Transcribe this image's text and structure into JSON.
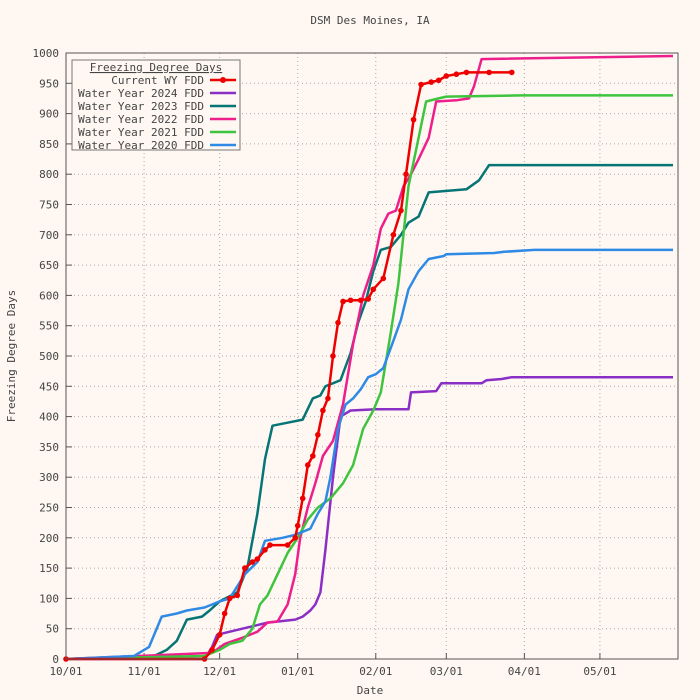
{
  "chart_data": {
    "type": "line",
    "title": "DSM Des Moines, IA",
    "xlabel": "Date",
    "ylabel": "Freezing Degree Days",
    "x_ticks": [
      "10/01",
      "11/01",
      "12/01",
      "01/01",
      "02/01",
      "03/01",
      "04/01",
      "05/01"
    ],
    "y_ticks": [
      0,
      50,
      100,
      150,
      200,
      250,
      300,
      350,
      400,
      450,
      500,
      550,
      600,
      650,
      700,
      750,
      800,
      850,
      900,
      950,
      1000
    ],
    "ylim": [
      0,
      1000
    ],
    "grid": true,
    "legend_title": "Freezing Degree Days",
    "legend_position": "top-left",
    "series": [
      {
        "name": "Current WY FDD",
        "color": "#ee0000",
        "markers": true,
        "points": [
          [
            "10/01",
            0
          ],
          [
            "11/25",
            0
          ],
          [
            "11/28",
            15
          ],
          [
            "12/01",
            40
          ],
          [
            "12/03",
            75
          ],
          [
            "12/05",
            100
          ],
          [
            "12/08",
            105
          ],
          [
            "12/11",
            150
          ],
          [
            "12/14",
            160
          ],
          [
            "12/16",
            165
          ],
          [
            "12/19",
            180
          ],
          [
            "12/21",
            188
          ],
          [
            "12/28",
            188
          ],
          [
            "12/31",
            200
          ],
          [
            "01/01",
            220
          ],
          [
            "01/03",
            265
          ],
          [
            "01/05",
            320
          ],
          [
            "01/07",
            335
          ],
          [
            "01/09",
            370
          ],
          [
            "01/11",
            410
          ],
          [
            "01/13",
            430
          ],
          [
            "01/15",
            500
          ],
          [
            "01/17",
            555
          ],
          [
            "01/19",
            590
          ],
          [
            "01/22",
            592
          ],
          [
            "01/26",
            592
          ],
          [
            "01/29",
            594
          ],
          [
            "01/31",
            610
          ],
          [
            "02/04",
            628
          ],
          [
            "02/08",
            700
          ],
          [
            "02/11",
            740
          ],
          [
            "02/13",
            800
          ],
          [
            "02/16",
            890
          ],
          [
            "02/19",
            948
          ],
          [
            "02/23",
            952
          ],
          [
            "02/26",
            955
          ],
          [
            "03/01",
            962
          ],
          [
            "03/05",
            965
          ],
          [
            "03/09",
            968
          ],
          [
            "03/18",
            968
          ],
          [
            "03/27",
            968
          ]
        ]
      },
      {
        "name": "Water Year 2024 FDD",
        "color": "#8a2fc6",
        "markers": false,
        "points": [
          [
            "10/01",
            0
          ],
          [
            "11/25",
            0
          ],
          [
            "11/28",
            20
          ],
          [
            "11/30",
            40
          ],
          [
            "12/05",
            45
          ],
          [
            "12/10",
            50
          ],
          [
            "12/15",
            55
          ],
          [
            "12/20",
            60
          ],
          [
            "12/31",
            65
          ],
          [
            "01/03",
            70
          ],
          [
            "01/06",
            80
          ],
          [
            "01/08",
            90
          ],
          [
            "01/10",
            110
          ],
          [
            "01/12",
            180
          ],
          [
            "01/15",
            300
          ],
          [
            "01/18",
            400
          ],
          [
            "01/22",
            410
          ],
          [
            "02/01",
            412
          ],
          [
            "02/14",
            412
          ],
          [
            "02/15",
            440
          ],
          [
            "02/25",
            442
          ],
          [
            "02/27",
            455
          ],
          [
            "03/15",
            455
          ],
          [
            "03/17",
            460
          ],
          [
            "03/23",
            462
          ],
          [
            "03/27",
            465
          ],
          [
            "05/30",
            465
          ]
        ]
      },
      {
        "name": "Water Year 2023 FDD",
        "color": "#077575",
        "markers": false,
        "points": [
          [
            "10/01",
            0
          ],
          [
            "11/05",
            5
          ],
          [
            "11/10",
            15
          ],
          [
            "11/14",
            30
          ],
          [
            "11/18",
            65
          ],
          [
            "11/24",
            70
          ],
          [
            "11/27",
            80
          ],
          [
            "12/01",
            95
          ],
          [
            "12/08",
            110
          ],
          [
            "12/12",
            150
          ],
          [
            "12/16",
            240
          ],
          [
            "12/19",
            330
          ],
          [
            "12/22",
            385
          ],
          [
            "12/28",
            390
          ],
          [
            "01/03",
            395
          ],
          [
            "01/07",
            430
          ],
          [
            "01/10",
            435
          ],
          [
            "01/12",
            450
          ],
          [
            "01/18",
            460
          ],
          [
            "01/22",
            505
          ],
          [
            "01/25",
            555
          ],
          [
            "01/28",
            590
          ],
          [
            "01/31",
            640
          ],
          [
            "02/03",
            675
          ],
          [
            "02/07",
            680
          ],
          [
            "02/11",
            700
          ],
          [
            "02/14",
            720
          ],
          [
            "02/18",
            730
          ],
          [
            "02/22",
            770
          ],
          [
            "03/09",
            775
          ],
          [
            "03/14",
            790
          ],
          [
            "03/18",
            815
          ],
          [
            "05/30",
            815
          ]
        ]
      },
      {
        "name": "Water Year 2022 FDD",
        "color": "#ee1e8c",
        "markers": false,
        "points": [
          [
            "10/01",
            0
          ],
          [
            "11/28",
            10
          ],
          [
            "12/03",
            25
          ],
          [
            "12/10",
            35
          ],
          [
            "12/16",
            45
          ],
          [
            "12/20",
            60
          ],
          [
            "12/24",
            62
          ],
          [
            "12/28",
            90
          ],
          [
            "12/31",
            140
          ],
          [
            "01/02",
            200
          ],
          [
            "01/05",
            250
          ],
          [
            "01/08",
            290
          ],
          [
            "01/11",
            335
          ],
          [
            "01/15",
            360
          ],
          [
            "01/19",
            420
          ],
          [
            "01/23",
            520
          ],
          [
            "01/27",
            600
          ],
          [
            "01/31",
            650
          ],
          [
            "02/03",
            710
          ],
          [
            "02/06",
            735
          ],
          [
            "02/09",
            740
          ],
          [
            "02/12",
            780
          ],
          [
            "02/15",
            800
          ],
          [
            "02/18",
            825
          ],
          [
            "02/22",
            860
          ],
          [
            "02/25",
            920
          ],
          [
            "03/05",
            922
          ],
          [
            "03/10",
            925
          ],
          [
            "03/12",
            945
          ],
          [
            "03/15",
            990
          ],
          [
            "05/30",
            995
          ]
        ]
      },
      {
        "name": "Water Year 2021 FDD",
        "color": "#3ec43e",
        "markers": false,
        "points": [
          [
            "10/01",
            0
          ],
          [
            "11/25",
            5
          ],
          [
            "12/01",
            15
          ],
          [
            "12/05",
            25
          ],
          [
            "12/10",
            30
          ],
          [
            "12/14",
            50
          ],
          [
            "12/17",
            90
          ],
          [
            "12/20",
            105
          ],
          [
            "12/24",
            140
          ],
          [
            "12/28",
            175
          ],
          [
            "01/01",
            200
          ],
          [
            "01/05",
            230
          ],
          [
            "01/09",
            250
          ],
          [
            "01/14",
            265
          ],
          [
            "01/19",
            290
          ],
          [
            "01/23",
            320
          ],
          [
            "01/27",
            380
          ],
          [
            "01/31",
            410
          ],
          [
            "02/03",
            440
          ],
          [
            "02/07",
            540
          ],
          [
            "02/10",
            620
          ],
          [
            "02/14",
            780
          ],
          [
            "02/18",
            860
          ],
          [
            "02/21",
            920
          ],
          [
            "02/26",
            925
          ],
          [
            "03/01",
            928
          ],
          [
            "03/31",
            930
          ],
          [
            "05/30",
            930
          ]
        ]
      },
      {
        "name": "Water Year 2020 FDD",
        "color": "#2f8ae6",
        "markers": false,
        "points": [
          [
            "10/01",
            0
          ],
          [
            "10/28",
            5
          ],
          [
            "11/03",
            20
          ],
          [
            "11/08",
            70
          ],
          [
            "11/14",
            75
          ],
          [
            "11/18",
            80
          ],
          [
            "11/25",
            85
          ],
          [
            "11/28",
            90
          ],
          [
            "12/01",
            95
          ],
          [
            "12/05",
            100
          ],
          [
            "12/08",
            120
          ],
          [
            "12/11",
            140
          ],
          [
            "12/16",
            160
          ],
          [
            "12/19",
            195
          ],
          [
            "12/26",
            200
          ],
          [
            "12/31",
            205
          ],
          [
            "01/06",
            215
          ],
          [
            "01/09",
            240
          ],
          [
            "01/12",
            260
          ],
          [
            "01/14",
            300
          ],
          [
            "01/17",
            380
          ],
          [
            "01/20",
            420
          ],
          [
            "01/23",
            430
          ],
          [
            "01/26",
            445
          ],
          [
            "01/29",
            465
          ],
          [
            "02/01",
            470
          ],
          [
            "02/04",
            480
          ],
          [
            "02/08",
            525
          ],
          [
            "02/11",
            560
          ],
          [
            "02/14",
            610
          ],
          [
            "02/18",
            640
          ],
          [
            "02/22",
            660
          ],
          [
            "02/28",
            665
          ],
          [
            "03/01",
            668
          ],
          [
            "03/20",
            670
          ],
          [
            "03/24",
            672
          ],
          [
            "04/05",
            675
          ],
          [
            "05/30",
            675
          ]
        ]
      }
    ]
  }
}
